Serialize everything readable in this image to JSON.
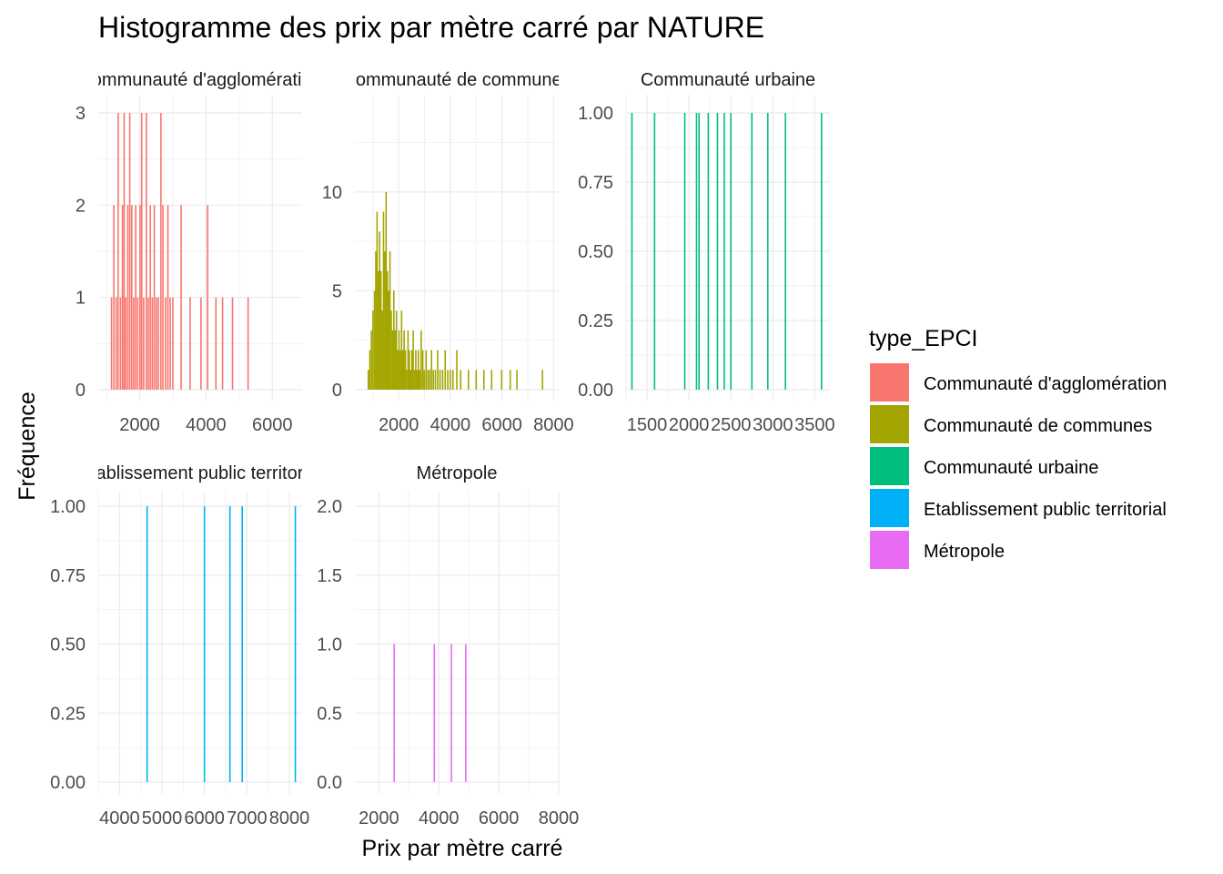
{
  "title": "Histogramme des prix par mètre carré par NATURE",
  "xlabel": "Prix par mètre carré",
  "ylabel": "Fréquence",
  "legend": {
    "title": "type_EPCI",
    "placement": "right",
    "items": [
      {
        "label": "Communauté d'agglomération",
        "color": "#F8766D"
      },
      {
        "label": "Communauté de communes",
        "color": "#A3A500"
      },
      {
        "label": "Communauté urbaine",
        "color": "#00BF7D"
      },
      {
        "label": "Etablissement public territorial",
        "color": "#00B0F6"
      },
      {
        "label": "Métropole",
        "color": "#E76BF3"
      }
    ]
  },
  "chart_data": [
    {
      "type": "bar",
      "panel_title": "Communauté d'agglomération",
      "color": "#F8766D",
      "xlim": [
        750,
        6900
      ],
      "ylim": [
        0,
        3
      ],
      "xticks": [
        2000,
        4000,
        6000
      ],
      "xtick_labels": [
        "2000",
        "4000",
        "6000"
      ],
      "yticks": [
        0,
        1,
        2,
        3
      ],
      "ytick_labels": [
        "0",
        "1",
        "2",
        "3"
      ],
      "bars": [
        {
          "x": 1150,
          "y": 1
        },
        {
          "x": 1220,
          "y": 2
        },
        {
          "x": 1290,
          "y": 1
        },
        {
          "x": 1350,
          "y": 3
        },
        {
          "x": 1420,
          "y": 1
        },
        {
          "x": 1480,
          "y": 2
        },
        {
          "x": 1530,
          "y": 3
        },
        {
          "x": 1580,
          "y": 1
        },
        {
          "x": 1640,
          "y": 2
        },
        {
          "x": 1700,
          "y": 3
        },
        {
          "x": 1760,
          "y": 2
        },
        {
          "x": 1820,
          "y": 1
        },
        {
          "x": 1880,
          "y": 2
        },
        {
          "x": 1940,
          "y": 1
        },
        {
          "x": 2010,
          "y": 2
        },
        {
          "x": 2060,
          "y": 3
        },
        {
          "x": 2120,
          "y": 1
        },
        {
          "x": 2200,
          "y": 3
        },
        {
          "x": 2260,
          "y": 1
        },
        {
          "x": 2320,
          "y": 2
        },
        {
          "x": 2380,
          "y": 1
        },
        {
          "x": 2440,
          "y": 2
        },
        {
          "x": 2500,
          "y": 1
        },
        {
          "x": 2560,
          "y": 1
        },
        {
          "x": 2640,
          "y": 3
        },
        {
          "x": 2700,
          "y": 2
        },
        {
          "x": 2780,
          "y": 1
        },
        {
          "x": 2850,
          "y": 2
        },
        {
          "x": 2920,
          "y": 1
        },
        {
          "x": 3000,
          "y": 1
        },
        {
          "x": 3250,
          "y": 2
        },
        {
          "x": 3520,
          "y": 1
        },
        {
          "x": 3850,
          "y": 1
        },
        {
          "x": 4050,
          "y": 2
        },
        {
          "x": 4300,
          "y": 1
        },
        {
          "x": 4500,
          "y": 1
        },
        {
          "x": 4800,
          "y": 1
        },
        {
          "x": 5270,
          "y": 1
        }
      ]
    },
    {
      "type": "bar",
      "panel_title": "Communauté de communes",
      "color": "#A3A500",
      "xlim": [
        300,
        8200
      ],
      "ylim": [
        0,
        14
      ],
      "xticks": [
        2000,
        4000,
        6000,
        8000
      ],
      "xtick_labels": [
        "2000",
        "4000",
        "6000",
        "8000"
      ],
      "yticks": [
        0,
        5,
        10
      ],
      "ytick_labels": [
        "0",
        "5",
        "10"
      ],
      "bars": [
        {
          "x": 820,
          "y": 1
        },
        {
          "x": 880,
          "y": 2
        },
        {
          "x": 940,
          "y": 3
        },
        {
          "x": 1000,
          "y": 4
        },
        {
          "x": 1060,
          "y": 5
        },
        {
          "x": 1110,
          "y": 7
        },
        {
          "x": 1160,
          "y": 9
        },
        {
          "x": 1210,
          "y": 6
        },
        {
          "x": 1260,
          "y": 8
        },
        {
          "x": 1310,
          "y": 6
        },
        {
          "x": 1360,
          "y": 4
        },
        {
          "x": 1410,
          "y": 9
        },
        {
          "x": 1460,
          "y": 7
        },
        {
          "x": 1510,
          "y": 10
        },
        {
          "x": 1560,
          "y": 6
        },
        {
          "x": 1610,
          "y": 5
        },
        {
          "x": 1660,
          "y": 7
        },
        {
          "x": 1710,
          "y": 4
        },
        {
          "x": 1760,
          "y": 3
        },
        {
          "x": 1810,
          "y": 5
        },
        {
          "x": 1860,
          "y": 3
        },
        {
          "x": 1910,
          "y": 4
        },
        {
          "x": 1960,
          "y": 2
        },
        {
          "x": 2010,
          "y": 3
        },
        {
          "x": 2060,
          "y": 2
        },
        {
          "x": 2110,
          "y": 4
        },
        {
          "x": 2160,
          "y": 2
        },
        {
          "x": 2210,
          "y": 3
        },
        {
          "x": 2260,
          "y": 2
        },
        {
          "x": 2310,
          "y": 1
        },
        {
          "x": 2360,
          "y": 3
        },
        {
          "x": 2410,
          "y": 2
        },
        {
          "x": 2460,
          "y": 1
        },
        {
          "x": 2510,
          "y": 2
        },
        {
          "x": 2560,
          "y": 3
        },
        {
          "x": 2610,
          "y": 1
        },
        {
          "x": 2660,
          "y": 2
        },
        {
          "x": 2710,
          "y": 1
        },
        {
          "x": 2760,
          "y": 2
        },
        {
          "x": 2810,
          "y": 1
        },
        {
          "x": 2870,
          "y": 3
        },
        {
          "x": 2930,
          "y": 2
        },
        {
          "x": 2990,
          "y": 1
        },
        {
          "x": 3060,
          "y": 2
        },
        {
          "x": 3130,
          "y": 1
        },
        {
          "x": 3200,
          "y": 1
        },
        {
          "x": 3270,
          "y": 2
        },
        {
          "x": 3340,
          "y": 1
        },
        {
          "x": 3420,
          "y": 1
        },
        {
          "x": 3510,
          "y": 2
        },
        {
          "x": 3600,
          "y": 1
        },
        {
          "x": 3700,
          "y": 1
        },
        {
          "x": 3800,
          "y": 2
        },
        {
          "x": 3900,
          "y": 1
        },
        {
          "x": 4000,
          "y": 1
        },
        {
          "x": 4100,
          "y": 1
        },
        {
          "x": 4250,
          "y": 2
        },
        {
          "x": 4400,
          "y": 1
        },
        {
          "x": 4700,
          "y": 1
        },
        {
          "x": 5000,
          "y": 1
        },
        {
          "x": 5300,
          "y": 1
        },
        {
          "x": 5600,
          "y": 1
        },
        {
          "x": 5990,
          "y": 1
        },
        {
          "x": 6320,
          "y": 1
        },
        {
          "x": 6580,
          "y": 1
        },
        {
          "x": 7570,
          "y": 1
        }
      ]
    },
    {
      "type": "bar",
      "panel_title": "Communauté urbaine",
      "color": "#00BF7D",
      "xlim": [
        1250,
        3680
      ],
      "ylim": [
        0,
        1
      ],
      "xticks": [
        1500,
        2000,
        2500,
        3000,
        3500
      ],
      "xtick_labels": [
        "1500",
        "2000",
        "2500",
        "3000",
        "3500"
      ],
      "yticks": [
        0,
        0.25,
        0.5,
        0.75,
        1
      ],
      "ytick_labels": [
        "0.00",
        "0.25",
        "0.50",
        "0.75",
        "1.00"
      ],
      "bars": [
        {
          "x": 1320,
          "y": 1
        },
        {
          "x": 1590,
          "y": 1
        },
        {
          "x": 1950,
          "y": 1
        },
        {
          "x": 2090,
          "y": 1
        },
        {
          "x": 2120,
          "y": 1
        },
        {
          "x": 2230,
          "y": 1
        },
        {
          "x": 2340,
          "y": 1
        },
        {
          "x": 2420,
          "y": 1
        },
        {
          "x": 2500,
          "y": 1
        },
        {
          "x": 2750,
          "y": 1
        },
        {
          "x": 2940,
          "y": 1
        },
        {
          "x": 3150,
          "y": 1
        },
        {
          "x": 3580,
          "y": 1
        }
      ]
    },
    {
      "type": "bar",
      "panel_title": "Etablissement public territorial",
      "color": "#00B0F6",
      "xlim": [
        3500,
        8300
      ],
      "ylim": [
        0,
        1
      ],
      "xticks": [
        4000,
        5000,
        6000,
        7000,
        8000
      ],
      "xtick_labels": [
        "4000",
        "5000",
        "6000",
        "7000",
        "8000"
      ],
      "yticks": [
        0,
        0.25,
        0.5,
        0.75,
        1
      ],
      "ytick_labels": [
        "0.00",
        "0.25",
        "0.50",
        "0.75",
        "1.00"
      ],
      "bars": [
        {
          "x": 4650,
          "y": 1
        },
        {
          "x": 6000,
          "y": 1
        },
        {
          "x": 6600,
          "y": 1
        },
        {
          "x": 6890,
          "y": 1
        },
        {
          "x": 8140,
          "y": 1
        }
      ]
    },
    {
      "type": "bar",
      "panel_title": "Métropole",
      "color": "#E76BF3",
      "xlim": [
        1200,
        8000
      ],
      "ylim": [
        0,
        2
      ],
      "xticks": [
        2000,
        4000,
        6000,
        8000
      ],
      "xtick_labels": [
        "2000",
        "4000",
        "6000",
        "8000"
      ],
      "yticks": [
        0,
        0.5,
        1,
        1.5,
        2
      ],
      "ytick_labels": [
        "0.0",
        "0.5",
        "1.0",
        "1.5",
        "2.0"
      ],
      "bars": [
        {
          "x": 2510,
          "y": 1
        },
        {
          "x": 3850,
          "y": 1
        },
        {
          "x": 4420,
          "y": 1
        },
        {
          "x": 4900,
          "y": 1
        }
      ]
    }
  ]
}
